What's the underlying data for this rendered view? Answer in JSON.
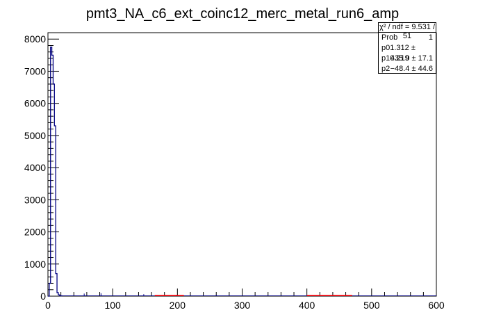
{
  "chart_data": {
    "type": "histogram",
    "title": "pmt3_NA_c6_ext_coinc12_merc_metal_run6_amp",
    "xlabel": "",
    "ylabel": "",
    "xlim": [
      0,
      600
    ],
    "ylim": [
      0,
      8200
    ],
    "x_ticks": [
      0,
      100,
      200,
      300,
      400,
      500,
      600
    ],
    "y_ticks": [
      0,
      1000,
      2000,
      3000,
      4000,
      5000,
      6000,
      7000,
      8000
    ],
    "grid": false,
    "bin_width": 2,
    "histogram": {
      "color": "#000080",
      "bins": [
        {
          "x": 0,
          "y": 0
        },
        {
          "x": 2,
          "y": 400
        },
        {
          "x": 4,
          "y": 7750
        },
        {
          "x": 6,
          "y": 7500
        },
        {
          "x": 8,
          "y": 6600
        },
        {
          "x": 10,
          "y": 5300
        },
        {
          "x": 12,
          "y": 700
        },
        {
          "x": 14,
          "y": 110
        },
        {
          "x": 16,
          "y": 40
        },
        {
          "x": 18,
          "y": 15
        },
        {
          "x": 20,
          "y": 10
        }
      ],
      "small_peaks": [
        {
          "x": 56,
          "y": 80
        },
        {
          "x": 82,
          "y": 90
        },
        {
          "x": 148,
          "y": 60
        },
        {
          "x": 198,
          "y": 40
        },
        {
          "x": 260,
          "y": 35
        },
        {
          "x": 420,
          "y": 30
        },
        {
          "x": 480,
          "y": 25
        }
      ]
    },
    "fit": {
      "color": "#ff0000",
      "segments": [
        {
          "x": [
            165,
            210
          ],
          "y": [
            20,
            20
          ]
        },
        {
          "x": [
            400,
            470
          ],
          "y": [
            20,
            20
          ]
        }
      ]
    },
    "stats": {
      "chi2_label": "χ² / ndf = 9.531 / 51",
      "rows": [
        {
          "name": "Prob",
          "value": "1"
        },
        {
          "name": "p0",
          "value": "1.312 ± 0.219"
        },
        {
          "name": "p1",
          "value": "435.9 ± 17.1"
        },
        {
          "name": "p2",
          "value": "−48.4 ± 44.6"
        }
      ]
    }
  }
}
